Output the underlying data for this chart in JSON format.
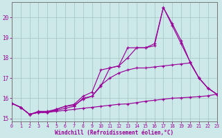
{
  "xlabel": "Windchill (Refroidissement éolien,°C)",
  "background_color": "#cce8e8",
  "grid_color": "#aac8c8",
  "line_color": "#990099",
  "spine_color": "#777777",
  "x_ticks": [
    0,
    1,
    2,
    3,
    4,
    5,
    6,
    7,
    8,
    9,
    10,
    11,
    12,
    13,
    14,
    15,
    16,
    17,
    18,
    19,
    20,
    21,
    22,
    23
  ],
  "y_ticks": [
    15,
    16,
    17,
    18,
    19,
    20
  ],
  "xlim": [
    0,
    23
  ],
  "ylim": [
    14.85,
    20.75
  ],
  "series": [
    [
      15.75,
      15.55,
      15.2,
      15.3,
      15.3,
      15.35,
      15.4,
      15.45,
      15.5,
      15.55,
      15.6,
      15.65,
      15.7,
      15.72,
      15.78,
      15.85,
      15.9,
      15.95,
      16.0,
      16.02,
      16.05,
      16.08,
      16.12,
      16.2
    ],
    [
      15.75,
      15.55,
      15.2,
      15.3,
      15.3,
      15.4,
      15.5,
      15.6,
      16.0,
      16.1,
      16.6,
      17.5,
      17.6,
      18.5,
      18.5,
      18.5,
      18.7,
      20.5,
      19.7,
      18.85,
      17.8,
      17.0,
      16.5,
      16.2
    ],
    [
      15.75,
      15.55,
      15.2,
      15.3,
      15.3,
      15.45,
      15.6,
      15.7,
      16.1,
      16.3,
      17.4,
      17.5,
      17.6,
      18.0,
      18.5,
      18.5,
      18.6,
      20.5,
      19.6,
      18.7,
      17.8,
      17.0,
      16.5,
      16.2
    ],
    [
      15.75,
      15.55,
      15.2,
      15.35,
      15.35,
      15.45,
      15.6,
      15.65,
      15.95,
      16.1,
      16.65,
      17.0,
      17.25,
      17.4,
      17.5,
      17.5,
      17.55,
      17.6,
      17.65,
      17.7,
      17.75,
      17.0,
      16.5,
      16.2
    ]
  ]
}
